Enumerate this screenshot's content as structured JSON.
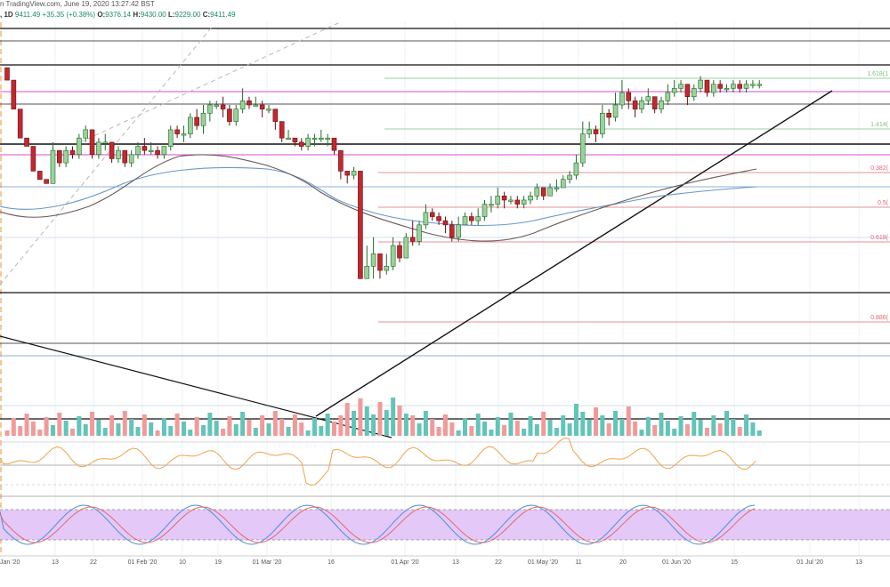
{
  "header": {
    "source_text": "n TradingView.com, June 19, 2020 13:27:42 BST"
  },
  "ohlc": {
    "interval": ", 1D",
    "last": "9411.49",
    "change": "+35.35 (+0.38%)",
    "o_label": "O:",
    "o": "9376.14",
    "h_label": "H:",
    "h": "9430.00",
    "l_label": "L:",
    "l": "9229.00",
    "c_label": "C:",
    "c": "9411.49"
  },
  "colors": {
    "up": "#9bd19b",
    "down": "#c2282f",
    "up_border": "#1f6d2a",
    "down_border": "#6a0f14",
    "ma_dark": "#6b5a5a",
    "ma_blue": "#6a98c8",
    "fib_green": "#7cc07c",
    "fib_red": "#e06a76",
    "magenta": "#d64ed6",
    "rsi": "#f0a24a",
    "stoch_k": "#4a8fe0",
    "stoch_d": "#e06a6a",
    "stoch_band": "#e4c8f7",
    "vol_up": "#63c4b8",
    "vol_down": "#f29a9a"
  },
  "chart_data": {
    "type": "candlestick",
    "fib_labels": [
      "1.618(1",
      "1.414(",
      "0.382(",
      "0.5(",
      "0.618(",
      "0.886("
    ],
    "x_tick_labels": [
      "13",
      "22",
      "01 Feb '20",
      "10",
      "19",
      "01 Mar '20",
      "16",
      "01 Apr '20",
      "13",
      "22",
      "01 May '20",
      "11",
      "20",
      "01 Jun '20",
      "15",
      "01 Jul '20",
      "13"
    ],
    "first_tick_partial": "Jan '20",
    "candles": [
      [
        0.89,
        0.86,
        0.89,
        0.86
      ],
      [
        0.86,
        0.79,
        0.86,
        0.79
      ],
      [
        0.79,
        0.72,
        0.79,
        0.72
      ],
      [
        0.72,
        0.7,
        0.72,
        0.7
      ],
      [
        0.7,
        0.64,
        0.7,
        0.64
      ],
      [
        0.64,
        0.62,
        0.64,
        0.62
      ],
      [
        0.62,
        0.61,
        0.62,
        0.61
      ],
      [
        0.61,
        0.69,
        0.71,
        0.61
      ],
      [
        0.69,
        0.66,
        0.69,
        0.65
      ],
      [
        0.66,
        0.69,
        0.7,
        0.65
      ],
      [
        0.69,
        0.68,
        0.7,
        0.67
      ],
      [
        0.68,
        0.72,
        0.73,
        0.67
      ],
      [
        0.72,
        0.74,
        0.75,
        0.71
      ],
      [
        0.74,
        0.68,
        0.74,
        0.67
      ],
      [
        0.68,
        0.71,
        0.72,
        0.67
      ],
      [
        0.71,
        0.71,
        0.73,
        0.69
      ],
      [
        0.71,
        0.67,
        0.71,
        0.66
      ],
      [
        0.67,
        0.69,
        0.7,
        0.66
      ],
      [
        0.69,
        0.66,
        0.69,
        0.65
      ],
      [
        0.66,
        0.68,
        0.69,
        0.65
      ],
      [
        0.68,
        0.7,
        0.71,
        0.67
      ],
      [
        0.7,
        0.69,
        0.72,
        0.68
      ],
      [
        0.69,
        0.69,
        0.71,
        0.68
      ],
      [
        0.69,
        0.68,
        0.7,
        0.67
      ],
      [
        0.68,
        0.7,
        0.7,
        0.67
      ],
      [
        0.7,
        0.74,
        0.75,
        0.69
      ],
      [
        0.74,
        0.73,
        0.75,
        0.72
      ],
      [
        0.73,
        0.73,
        0.75,
        0.71
      ],
      [
        0.73,
        0.77,
        0.78,
        0.72
      ],
      [
        0.77,
        0.75,
        0.79,
        0.74
      ],
      [
        0.75,
        0.78,
        0.8,
        0.73
      ],
      [
        0.78,
        0.8,
        0.81,
        0.76
      ],
      [
        0.8,
        0.8,
        0.81,
        0.79
      ],
      [
        0.8,
        0.79,
        0.82,
        0.77
      ],
      [
        0.79,
        0.76,
        0.8,
        0.75
      ],
      [
        0.76,
        0.79,
        0.8,
        0.75
      ],
      [
        0.79,
        0.81,
        0.84,
        0.78
      ],
      [
        0.81,
        0.8,
        0.82,
        0.79
      ],
      [
        0.8,
        0.8,
        0.82,
        0.8
      ],
      [
        0.8,
        0.79,
        0.81,
        0.77
      ],
      [
        0.79,
        0.79,
        0.8,
        0.78
      ],
      [
        0.79,
        0.76,
        0.79,
        0.74
      ],
      [
        0.76,
        0.72,
        0.76,
        0.71
      ],
      [
        0.72,
        0.72,
        0.74,
        0.72
      ],
      [
        0.72,
        0.71,
        0.72,
        0.7
      ],
      [
        0.71,
        0.7,
        0.72,
        0.69
      ],
      [
        0.7,
        0.72,
        0.73,
        0.69
      ],
      [
        0.72,
        0.72,
        0.73,
        0.7
      ],
      [
        0.72,
        0.72,
        0.74,
        0.71
      ],
      [
        0.72,
        0.72,
        0.73,
        0.7
      ],
      [
        0.72,
        0.69,
        0.72,
        0.68
      ],
      [
        0.69,
        0.64,
        0.69,
        0.62
      ],
      [
        0.64,
        0.63,
        0.64,
        0.61
      ],
      [
        0.63,
        0.64,
        0.65,
        0.62
      ],
      [
        0.64,
        0.38,
        0.64,
        0.38
      ],
      [
        0.38,
        0.41,
        0.46,
        0.38
      ],
      [
        0.41,
        0.44,
        0.48,
        0.38
      ],
      [
        0.44,
        0.4,
        0.44,
        0.38
      ],
      [
        0.4,
        0.41,
        0.44,
        0.39
      ],
      [
        0.41,
        0.46,
        0.48,
        0.4
      ],
      [
        0.46,
        0.43,
        0.47,
        0.42
      ],
      [
        0.43,
        0.48,
        0.49,
        0.43
      ],
      [
        0.48,
        0.47,
        0.52,
        0.46
      ],
      [
        0.47,
        0.51,
        0.52,
        0.46
      ],
      [
        0.51,
        0.54,
        0.56,
        0.5
      ],
      [
        0.54,
        0.53,
        0.55,
        0.52
      ],
      [
        0.53,
        0.52,
        0.54,
        0.51
      ],
      [
        0.52,
        0.51,
        0.53,
        0.49
      ],
      [
        0.51,
        0.48,
        0.52,
        0.47
      ],
      [
        0.48,
        0.51,
        0.53,
        0.47
      ],
      [
        0.51,
        0.53,
        0.54,
        0.51
      ],
      [
        0.53,
        0.52,
        0.54,
        0.51
      ],
      [
        0.52,
        0.53,
        0.55,
        0.51
      ],
      [
        0.53,
        0.56,
        0.57,
        0.52
      ],
      [
        0.56,
        0.56,
        0.58,
        0.54
      ],
      [
        0.56,
        0.58,
        0.6,
        0.55
      ],
      [
        0.58,
        0.57,
        0.59,
        0.55
      ],
      [
        0.57,
        0.57,
        0.58,
        0.56
      ],
      [
        0.57,
        0.56,
        0.58,
        0.55
      ],
      [
        0.56,
        0.57,
        0.58,
        0.55
      ],
      [
        0.57,
        0.58,
        0.59,
        0.56
      ],
      [
        0.58,
        0.6,
        0.61,
        0.57
      ],
      [
        0.6,
        0.58,
        0.6,
        0.57
      ],
      [
        0.58,
        0.6,
        0.61,
        0.58
      ],
      [
        0.6,
        0.6,
        0.62,
        0.59
      ],
      [
        0.6,
        0.62,
        0.63,
        0.6
      ],
      [
        0.62,
        0.63,
        0.64,
        0.61
      ],
      [
        0.63,
        0.66,
        0.68,
        0.62
      ],
      [
        0.66,
        0.73,
        0.76,
        0.65
      ],
      [
        0.73,
        0.74,
        0.76,
        0.72
      ],
      [
        0.74,
        0.73,
        0.75,
        0.71
      ],
      [
        0.73,
        0.78,
        0.8,
        0.72
      ],
      [
        0.78,
        0.77,
        0.79,
        0.75
      ],
      [
        0.77,
        0.8,
        0.83,
        0.76
      ],
      [
        0.8,
        0.83,
        0.86,
        0.79
      ],
      [
        0.83,
        0.81,
        0.84,
        0.79
      ],
      [
        0.81,
        0.79,
        0.82,
        0.77
      ],
      [
        0.79,
        0.81,
        0.82,
        0.78
      ],
      [
        0.81,
        0.82,
        0.84,
        0.8
      ],
      [
        0.82,
        0.79,
        0.82,
        0.78
      ],
      [
        0.79,
        0.81,
        0.82,
        0.78
      ],
      [
        0.81,
        0.83,
        0.85,
        0.8
      ],
      [
        0.83,
        0.84,
        0.86,
        0.82
      ],
      [
        0.84,
        0.85,
        0.86,
        0.83
      ],
      [
        0.85,
        0.82,
        0.85,
        0.8
      ],
      [
        0.82,
        0.84,
        0.85,
        0.81
      ],
      [
        0.84,
        0.86,
        0.87,
        0.83
      ],
      [
        0.86,
        0.83,
        0.86,
        0.82
      ],
      [
        0.83,
        0.85,
        0.86,
        0.82
      ],
      [
        0.85,
        0.84,
        0.86,
        0.83
      ],
      [
        0.84,
        0.84,
        0.85,
        0.83
      ],
      [
        0.84,
        0.85,
        0.86,
        0.83
      ],
      [
        0.85,
        0.84,
        0.86,
        0.83
      ],
      [
        0.84,
        0.85,
        0.86,
        0.83
      ],
      [
        0.85,
        0.85,
        0.86,
        0.84
      ],
      [
        0.85,
        0.85,
        0.86,
        0.84
      ]
    ]
  }
}
